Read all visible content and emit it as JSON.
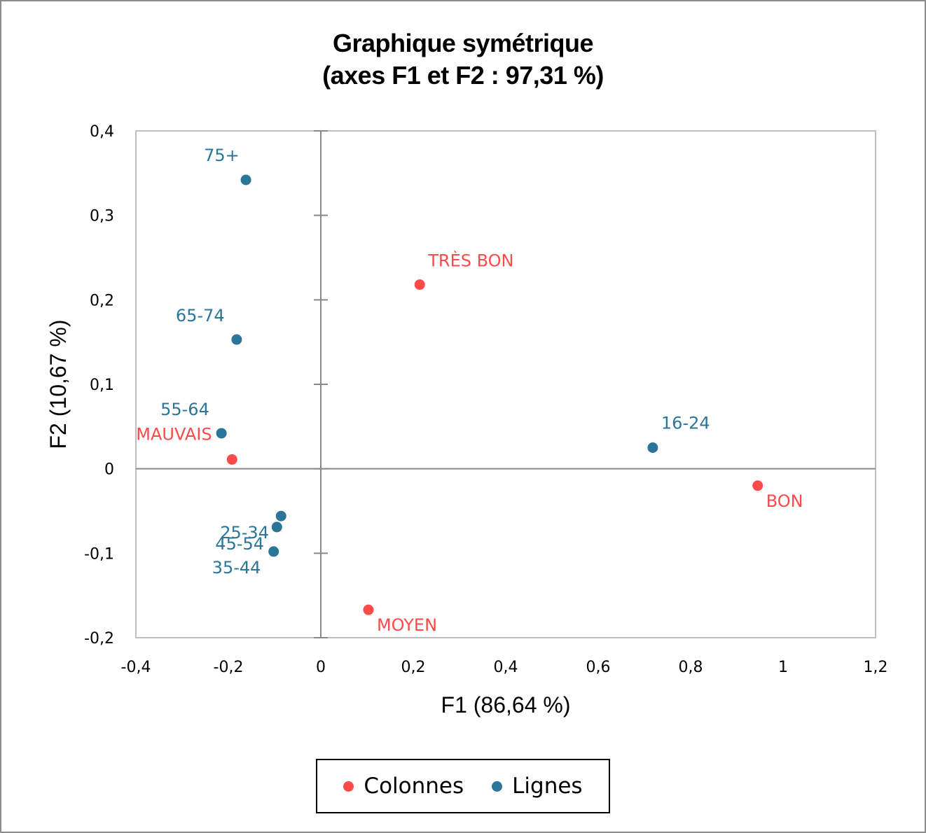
{
  "colors": {
    "colonnes": "#ff4a4a",
    "lignes": "#2b7598",
    "axis": "#888888",
    "plot_border": "#bfbfbf"
  },
  "chart_data": {
    "type": "scatter",
    "title": "Graphique symétrique",
    "subtitle": "(axes F1 et F2 : 97,31 %)",
    "xlabel": "F1 (86,64 %)",
    "ylabel": "F2 (10,67 %)",
    "xlim": [
      -0.4,
      1.2
    ],
    "ylim": [
      -0.2,
      0.4
    ],
    "x_ticks": [
      "-0,4",
      "-0,2",
      "0",
      "0,2",
      "0,4",
      "0,6",
      "0,8",
      "1",
      "1,2"
    ],
    "x_tick_values": [
      -0.4,
      -0.2,
      0,
      0.2,
      0.4,
      0.6,
      0.8,
      1.0,
      1.2
    ],
    "y_ticks": [
      "0,4",
      "0,3",
      "0,2",
      "0,1",
      "0",
      "-0,1",
      "-0,2"
    ],
    "y_tick_values": [
      0.4,
      0.3,
      0.2,
      0.1,
      0,
      -0.1,
      -0.2
    ],
    "grid": false,
    "legend_position": "bottom",
    "series": [
      {
        "name": "Colonnes",
        "color": "#ff4a4a",
        "points": [
          {
            "label": "TRÈS BON",
            "x": 0.214,
            "y": 0.218,
            "dx": 12,
            "dy": -26
          },
          {
            "label": "MAUVAIS",
            "x": -0.192,
            "y": 0.011,
            "dx": -137,
            "dy": -28
          },
          {
            "label": "BON",
            "x": 0.945,
            "y": -0.02,
            "dx": 12,
            "dy": 30
          },
          {
            "label": "MOYEN",
            "x": 0.103,
            "y": -0.167,
            "dx": 12,
            "dy": 30
          }
        ]
      },
      {
        "name": "Lignes",
        "color": "#2b7598",
        "points": [
          {
            "label": "75+",
            "x": -0.162,
            "y": 0.342,
            "dx": -60,
            "dy": -27
          },
          {
            "label": "65-74",
            "x": -0.182,
            "y": 0.153,
            "dx": -87,
            "dy": -26
          },
          {
            "label": "55-64",
            "x": -0.215,
            "y": 0.042,
            "dx": -87,
            "dy": -26
          },
          {
            "label": "16-24",
            "x": 0.718,
            "y": 0.025,
            "dx": 12,
            "dy": -27
          },
          {
            "label": "25-34",
            "x": -0.086,
            "y": -0.056,
            "dx": -87,
            "dy": 32
          },
          {
            "label": "45-54",
            "x": -0.095,
            "y": -0.069,
            "dx": -88,
            "dy": 32
          },
          {
            "label": "35-44",
            "x": -0.102,
            "y": -0.098,
            "dx": -88,
            "dy": 31
          }
        ]
      }
    ]
  },
  "legend": {
    "items": [
      {
        "label": "Colonnes",
        "color": "#ff4a4a"
      },
      {
        "label": "Lignes",
        "color": "#2b7598"
      }
    ]
  }
}
